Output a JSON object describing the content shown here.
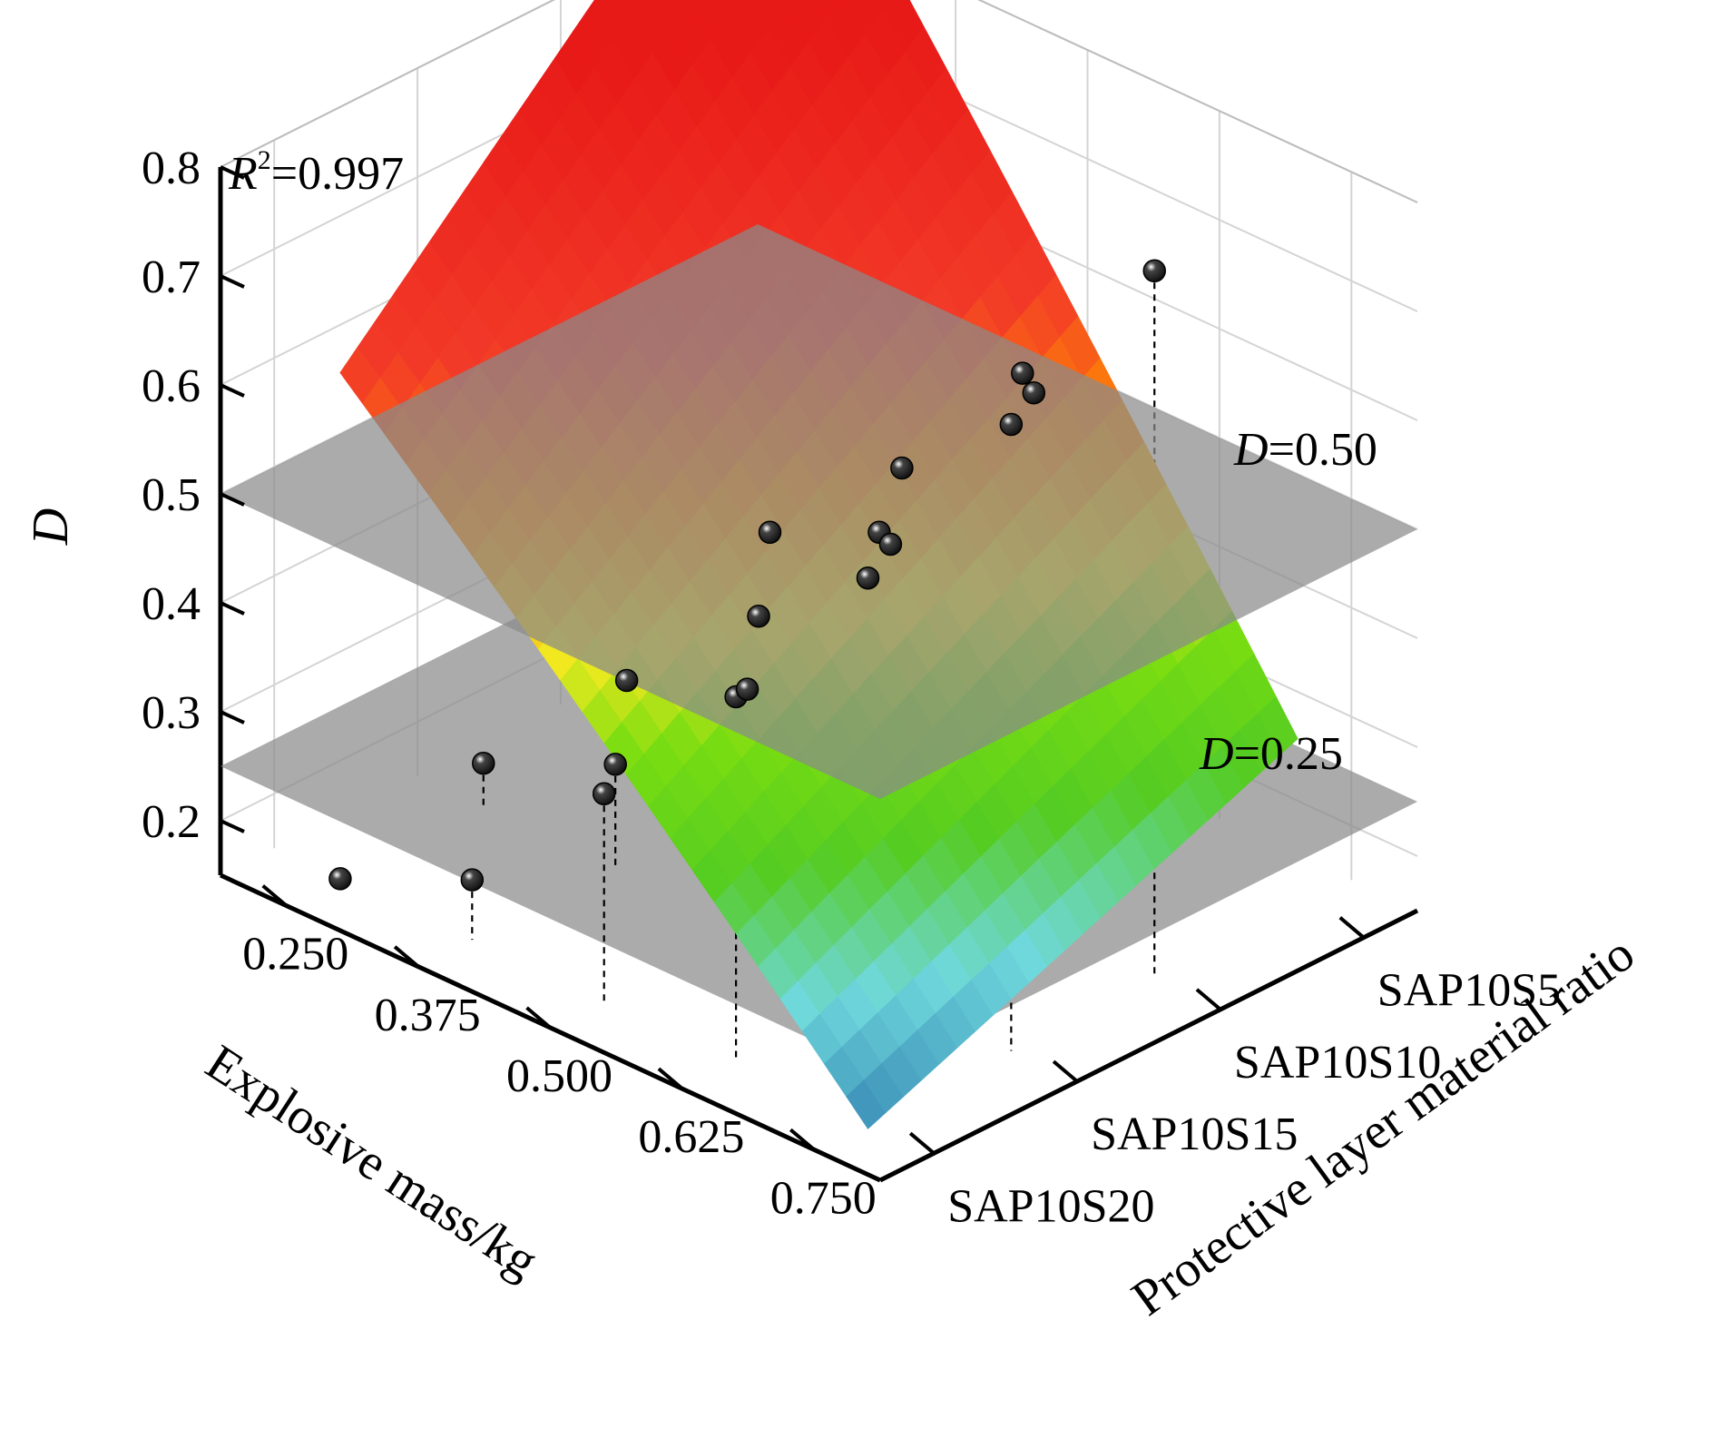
{
  "chart_data": {
    "type": "surface3d",
    "title": "",
    "zlabel": "D",
    "xlabel": "Explosive mass/kg",
    "ylabel": "Protective layer material ratio",
    "z_ticks": [
      "0.2",
      "0.3",
      "0.4",
      "0.5",
      "0.6",
      "0.7",
      "0.8"
    ],
    "z_range": [
      0.15,
      0.8
    ],
    "x_ticks": [
      "0.750",
      "0.625",
      "0.500",
      "0.375",
      "0.250"
    ],
    "y_ticks": [
      "SAP10S20",
      "SAP10S15",
      "SAP10S10",
      "SAP10S5"
    ],
    "r2_label": "R",
    "r2_exponent": "2",
    "r2_value": "=0.997",
    "planes": [
      {
        "z": 0.5,
        "label_var": "D",
        "label_value": "=0.50"
      },
      {
        "z": 0.25,
        "label_var": "D",
        "label_value": "=0.25"
      }
    ],
    "grid": true,
    "colors": {
      "plane": "#8a8a8a",
      "points": "#111111",
      "colormap": [
        "#3c8fb8",
        "#6fd8dc",
        "#55cc22",
        "#7add11",
        "#f2ea20",
        "#ff9000",
        "#f23a28",
        "#e81a18"
      ]
    },
    "points": [
      {
        "x": 0.75,
        "y": "SAP10S20",
        "z": 0.65
      },
      {
        "x": 0.75,
        "y": "SAP10S15",
        "z": 0.725
      },
      {
        "x": 0.75,
        "y": "SAP10S10",
        "z": 0.8
      },
      {
        "x": 0.625,
        "y": "SAP10S20",
        "z": 0.485
      },
      {
        "x": 0.625,
        "y": "SAP10S15",
        "z": 0.57
      },
      {
        "x": 0.625,
        "y": "SAP10S10",
        "z": 0.65
      },
      {
        "x": 0.5,
        "y": "SAP10S20",
        "z": 0.34
      },
      {
        "x": 0.5,
        "y": "SAP10S15",
        "z": 0.37
      },
      {
        "x": 0.5,
        "y": "SAP10S10",
        "z": 0.437
      },
      {
        "x": 0.5,
        "y": "SAP10S5",
        "z": 0.51
      },
      {
        "x": 0.375,
        "y": "SAP10S20",
        "z": 0.205
      },
      {
        "x": 0.375,
        "y": "SAP10S15",
        "z": 0.245
      },
      {
        "x": 0.375,
        "y": "SAP10S10",
        "z": 0.315
      },
      {
        "x": 0.375,
        "y": "SAP10S5",
        "z": 0.385
      },
      {
        "x": 0.25,
        "y": "SAP10S20",
        "z": 0.15
      },
      {
        "x": 0.25,
        "y": "SAP10S15",
        "z": 0.19
      },
      {
        "x": 0.25,
        "y": "SAP10S10",
        "z": 0.2
      },
      {
        "x": 0.25,
        "y": "SAP10S5",
        "z": 0.27
      }
    ]
  }
}
